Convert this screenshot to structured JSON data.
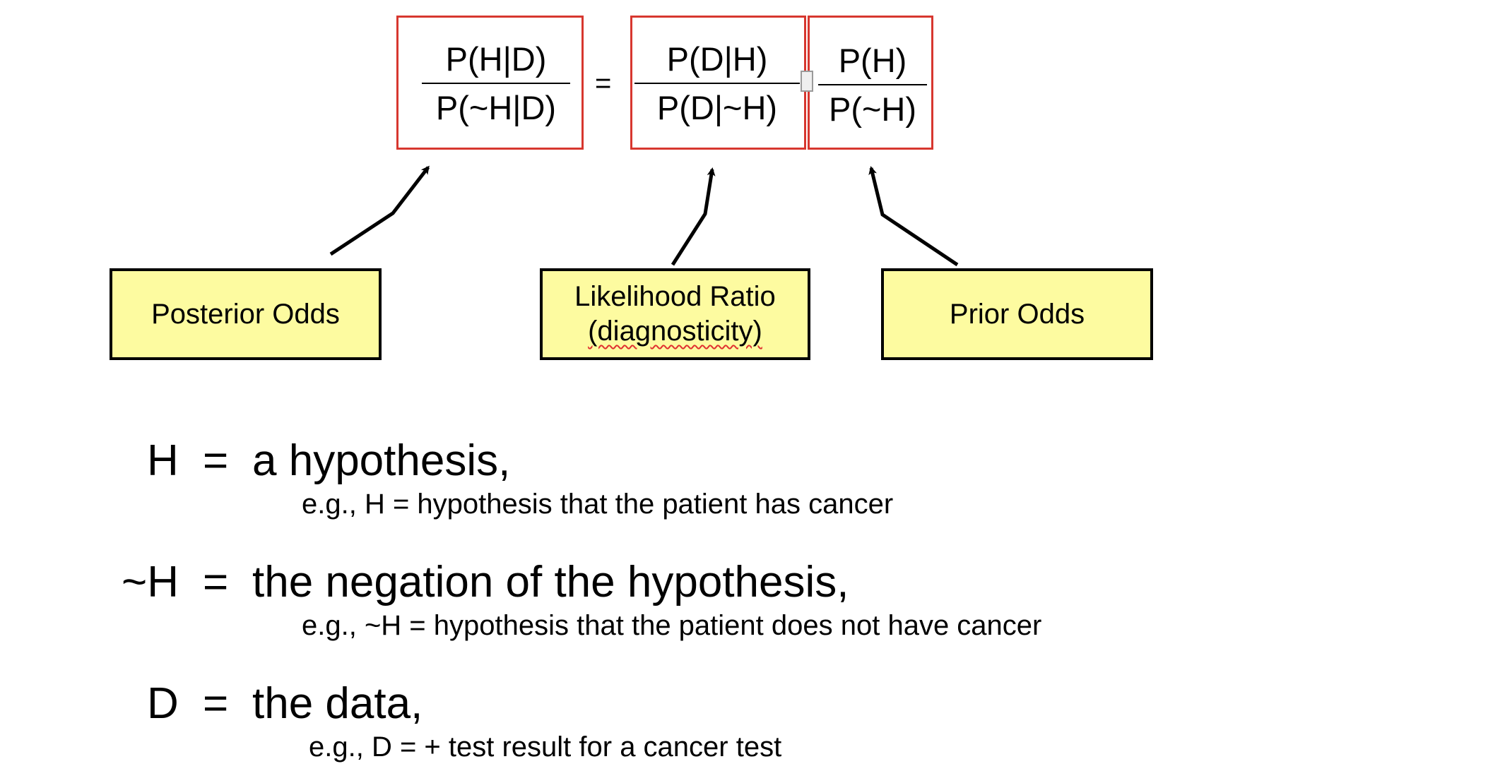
{
  "equation": {
    "posterior": {
      "numerator": "P(H|D)",
      "denominator": "P(~H|D)"
    },
    "equals": "=",
    "likelihood": {
      "numerator": "P(D|H)",
      "denominator": "P(D|~H)"
    },
    "prior": {
      "numerator": "P(H)",
      "denominator": "P(~H)"
    }
  },
  "labels": {
    "posterior_odds": "Posterior Odds",
    "likelihood_ratio_line1": "Likelihood Ratio",
    "likelihood_ratio_line2": "(diagnosticity)",
    "prior_odds": "Prior Odds"
  },
  "definitions": [
    {
      "symbol": "H",
      "equals": "=",
      "text": "a hypothesis,",
      "example": "e.g.,  H = hypothesis that the patient has cancer"
    },
    {
      "symbol": "~H",
      "equals": "=",
      "text": "the negation of the hypothesis,",
      "example": "e.g.,  ~H =  hypothesis that the patient does not have cancer"
    },
    {
      "symbol": "D",
      "equals": "=",
      "text": "the data,",
      "example": "e.g.,  D =  + test result for a cancer test"
    }
  ],
  "colors": {
    "frame": "#d7372f",
    "label_fill": "#fdfba0",
    "arrow": "#000000",
    "spellcheck_squiggle": "#e03030"
  }
}
